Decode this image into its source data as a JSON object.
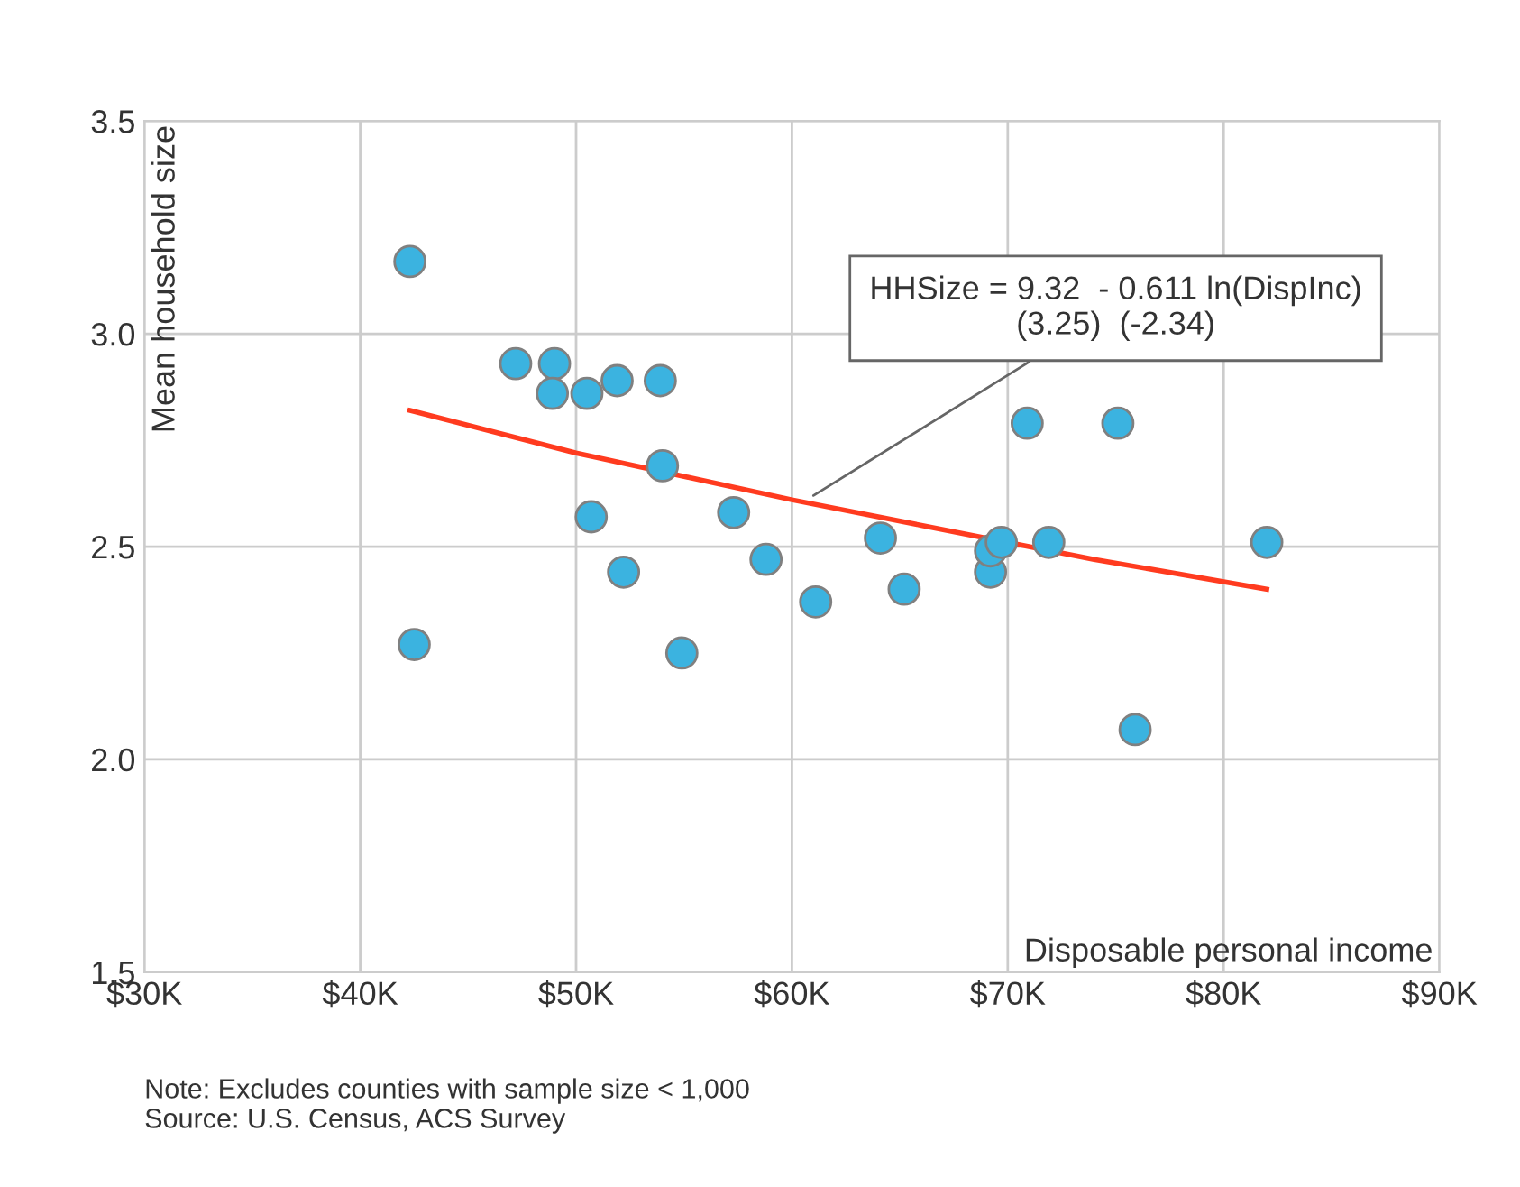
{
  "chart_data": {
    "type": "scatter",
    "xlabel": "Disposable personal income",
    "ylabel": "Mean household size",
    "xlim": [
      30,
      90
    ],
    "xticks": [
      {
        "value": 30,
        "label": "$30K"
      },
      {
        "value": 40,
        "label": "$40K"
      },
      {
        "value": 50,
        "label": "$50K"
      },
      {
        "value": 60,
        "label": "$60K"
      },
      {
        "value": 70,
        "label": "$70K"
      },
      {
        "value": 80,
        "label": "$80K"
      },
      {
        "value": 90,
        "label": "$90K"
      }
    ],
    "ylim": [
      1.5,
      3.5
    ],
    "yticks": [
      {
        "value": 1.5,
        "label": "1.5"
      },
      {
        "value": 2.0,
        "label": "2.0"
      },
      {
        "value": 2.5,
        "label": "2.5"
      },
      {
        "value": 3.0,
        "label": "3.0"
      },
      {
        "value": 3.5,
        "label": "3.5"
      }
    ],
    "grid": true,
    "legend": false,
    "marker": "circle",
    "series": [
      {
        "color": "#3bb3e0",
        "x": [
          42.3,
          42.5,
          47.2,
          49.0,
          48.9,
          50.5,
          51.9,
          53.9,
          50.7,
          54.0,
          52.2,
          54.9,
          57.3,
          58.8,
          61.1,
          64.1,
          65.2,
          69.2,
          69.2,
          69.7,
          70.9,
          71.9,
          75.1,
          75.9,
          82.0
        ],
        "values": [
          3.17,
          2.27,
          2.93,
          2.93,
          2.86,
          2.86,
          2.89,
          2.89,
          2.57,
          2.69,
          2.44,
          2.25,
          2.58,
          2.47,
          2.37,
          2.52,
          2.4,
          2.44,
          2.49,
          2.51,
          2.79,
          2.51,
          2.79,
          2.07,
          2.51
        ]
      },
      {
        "type": "line",
        "color": "#ff3b1f",
        "marker": "none",
        "x": [
          42.3,
          50,
          60,
          66,
          74,
          82
        ],
        "values": [
          2.82,
          2.72,
          2.61,
          2.55,
          2.47,
          2.4
        ]
      }
    ],
    "annotations": [
      {
        "text": "HHSize = 9.32  - 0.611 ln(DispInc)\n(3.25)  (-2.34)",
        "x": 61,
        "y": 2.62
      },
      "Note: Excludes counties with sample size < 1,000\nSource: U.S. Census, ACS Survey"
    ]
  }
}
